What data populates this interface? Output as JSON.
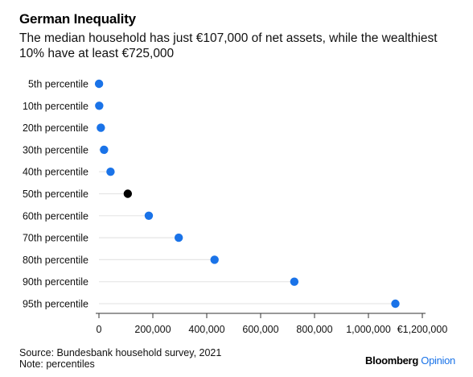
{
  "chart_data": {
    "type": "scatter",
    "title": "German Inequality",
    "subtitle": "The median household has just €107,000 of net assets, while the wealthiest 10% have at least €725,000",
    "categories": [
      "5th percentile",
      "10th percentile",
      "20th percentile",
      "30th percentile",
      "40th percentile",
      "50th percentile",
      "60th percentile",
      "70th percentile",
      "80th percentile",
      "90th percentile",
      "95th percentile"
    ],
    "values": [
      300,
      1000,
      7000,
      19000,
      43000,
      107000,
      185000,
      296000,
      429000,
      725000,
      1100000
    ],
    "highlight_index": 5,
    "xlim": [
      0,
      1200000
    ],
    "x_ticks": [
      0,
      200000,
      400000,
      600000,
      800000,
      1000000,
      1200000
    ],
    "x_tick_labels": [
      "0",
      "200,000",
      "400,000",
      "600,000",
      "800,000",
      "1,000,000",
      "€1,200,000"
    ],
    "xlabel": "",
    "ylabel": "",
    "grid": false,
    "colors": {
      "point": "#1a73e8",
      "highlight": "#000000",
      "stem": "#e6e6e6"
    }
  },
  "footer": {
    "source": "Source: Bundesbank household survey, 2021",
    "note": "Note: percentiles"
  },
  "brand": {
    "name": "Bloomberg",
    "suffix": "Opinion"
  }
}
